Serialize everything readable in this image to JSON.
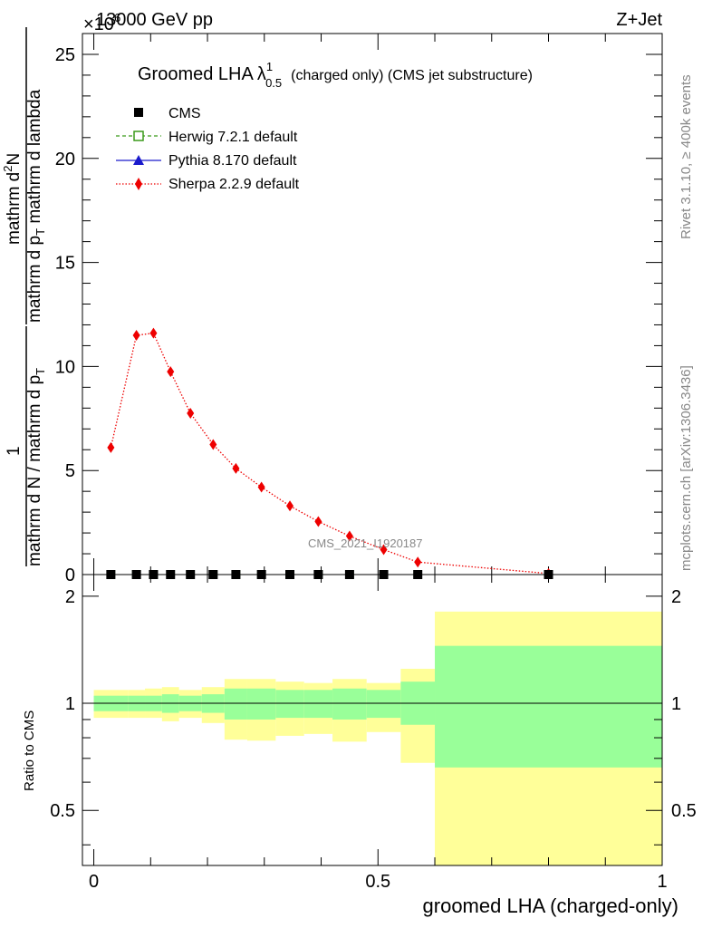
{
  "header": {
    "energy": "13000 GeV pp",
    "process": "Z+Jet",
    "exp_prefix": "×10",
    "exp_sup": "6"
  },
  "side": {
    "rivet": "Rivet 3.1.10, ≥ 400k events",
    "mcplots": "mcplots.cern.ch [arXiv:1306.3436]"
  },
  "watermark": "CMS_2021_I1920187",
  "title": {
    "main": "Groomed LHA",
    "lambda": "λ",
    "sup": "1",
    "sub": "0.5",
    "rest": "(charged only) (CMS jet substructure)"
  },
  "axes": {
    "ylabel_num": "1",
    "ylabel_den": "mathrm d N / mathrm d p",
    "ylabel_den_sub": "T",
    "ylabel_num2": "mathrm d",
    "ylabel_num2_sup": "2",
    "ylabel_num2_tail": "N",
    "ylabel_den2": "mathrm d p",
    "ylabel_den2_sub": "T",
    "ylabel_den2_tail": " mathrm d lambda",
    "ratio_ylabel": "Ratio to CMS",
    "xlabel": "groomed LHA (charged-only)"
  },
  "colors": {
    "cms": "#000000",
    "herwig": "#3a9a1a",
    "pythia": "#1a1acc",
    "sherpa": "#ee0000",
    "band_inner": "#99ff99",
    "band_outer": "#ffff99"
  },
  "chart_data": [
    {
      "type": "line",
      "panel": "main",
      "xlim": [
        -0.02,
        1.0
      ],
      "ylim": [
        0,
        26
      ],
      "y_ticks": [
        0,
        5,
        10,
        15,
        20,
        25
      ],
      "x_ticks": [
        0,
        0.5,
        1
      ],
      "legend_position": "top-left",
      "series": [
        {
          "name": "CMS",
          "x": [
            0.03,
            0.075,
            0.105,
            0.135,
            0.17,
            0.21,
            0.25,
            0.295,
            0.345,
            0.395,
            0.45,
            0.51,
            0.57,
            0.8
          ],
          "y": [
            0,
            0,
            0,
            0,
            0,
            0,
            0,
            0,
            0,
            0,
            0,
            0,
            0,
            0
          ]
        },
        {
          "name": "Herwig 7.2.1 default",
          "x": [
            0.03,
            0.075,
            0.105,
            0.135,
            0.17,
            0.21,
            0.25,
            0.295,
            0.345,
            0.395,
            0.45,
            0.51,
            0.57,
            0.8
          ],
          "y": [
            0,
            0,
            0,
            0,
            0,
            0,
            0,
            0,
            0,
            0,
            0,
            0,
            0,
            0
          ]
        },
        {
          "name": "Pythia 8.170 default",
          "x": [
            0.03,
            0.075,
            0.105,
            0.135,
            0.17,
            0.21,
            0.25,
            0.295,
            0.345,
            0.395,
            0.45,
            0.51,
            0.57,
            0.8
          ],
          "y": [
            0,
            0,
            0,
            0,
            0,
            0,
            0,
            0,
            0,
            0,
            0,
            0,
            0,
            0
          ]
        },
        {
          "name": "Sherpa 2.2.9 default",
          "x": [
            0.03,
            0.075,
            0.105,
            0.135,
            0.17,
            0.21,
            0.25,
            0.295,
            0.345,
            0.395,
            0.45,
            0.51,
            0.57,
            0.8
          ],
          "y": [
            6.1,
            11.5,
            11.6,
            9.75,
            7.75,
            6.25,
            5.1,
            4.2,
            3.3,
            2.55,
            1.85,
            1.2,
            0.6,
            0.05
          ]
        }
      ]
    },
    {
      "type": "area",
      "panel": "ratio",
      "xlim": [
        -0.02,
        1.0
      ],
      "ylim": [
        0.35,
        2.3
      ],
      "y_ticks": [
        0.5,
        1,
        2
      ],
      "x_ticks": [
        0,
        0.5,
        1
      ],
      "bins": [
        {
          "lo": 0.0,
          "hi": 0.06,
          "in": [
            0.95,
            1.05
          ],
          "out": [
            0.91,
            1.09
          ]
        },
        {
          "lo": 0.06,
          "hi": 0.09,
          "in": [
            0.95,
            1.05
          ],
          "out": [
            0.91,
            1.09
          ]
        },
        {
          "lo": 0.09,
          "hi": 0.12,
          "in": [
            0.95,
            1.05
          ],
          "out": [
            0.91,
            1.1
          ]
        },
        {
          "lo": 0.12,
          "hi": 0.15,
          "in": [
            0.94,
            1.06
          ],
          "out": [
            0.89,
            1.11
          ]
        },
        {
          "lo": 0.15,
          "hi": 0.19,
          "in": [
            0.95,
            1.05
          ],
          "out": [
            0.91,
            1.09
          ]
        },
        {
          "lo": 0.19,
          "hi": 0.23,
          "in": [
            0.94,
            1.06
          ],
          "out": [
            0.88,
            1.11
          ]
        },
        {
          "lo": 0.23,
          "hi": 0.27,
          "in": [
            0.9,
            1.1
          ],
          "out": [
            0.79,
            1.17
          ]
        },
        {
          "lo": 0.27,
          "hi": 0.32,
          "in": [
            0.9,
            1.1
          ],
          "out": [
            0.785,
            1.17
          ]
        },
        {
          "lo": 0.32,
          "hi": 0.37,
          "in": [
            0.91,
            1.09
          ],
          "out": [
            0.81,
            1.15
          ]
        },
        {
          "lo": 0.37,
          "hi": 0.42,
          "in": [
            0.91,
            1.09
          ],
          "out": [
            0.82,
            1.14
          ]
        },
        {
          "lo": 0.42,
          "hi": 0.48,
          "in": [
            0.9,
            1.1
          ],
          "out": [
            0.78,
            1.17
          ]
        },
        {
          "lo": 0.48,
          "hi": 0.54,
          "in": [
            0.91,
            1.09
          ],
          "out": [
            0.83,
            1.14
          ]
        },
        {
          "lo": 0.54,
          "hi": 0.6,
          "in": [
            0.87,
            1.15
          ],
          "out": [
            0.68,
            1.25
          ]
        },
        {
          "lo": 0.6,
          "hi": 1.0,
          "in": [
            0.66,
            1.45
          ],
          "out": [
            0.35,
            1.81
          ]
        }
      ],
      "reference_line": 1
    }
  ]
}
